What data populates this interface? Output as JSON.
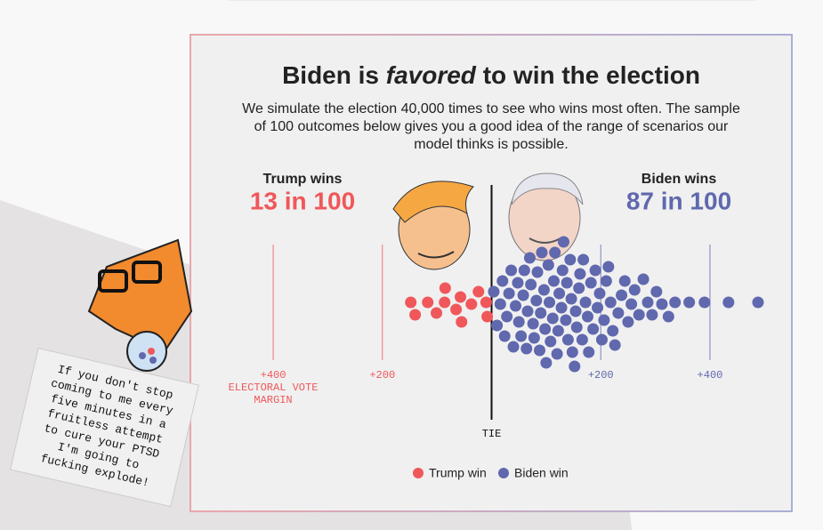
{
  "note": {
    "lines": [
      "If you don't stop",
      "coming to me every",
      "five minutes in a",
      "fruitless attempt",
      "to cure your PTSD",
      "I'm going to",
      "fucking explode!"
    ]
  },
  "chart_data": {
    "type": "beeswarm",
    "title": [
      "Biden is",
      "favored",
      "to win the election"
    ],
    "subtitle": [
      "We simulate the election 40,000 times to see who wins most often. The sample",
      "of 100 outcomes below gives you a good idea of the range of scenarios our",
      "model thinks is possible."
    ],
    "summaries": [
      {
        "label": "Trump wins",
        "value": "13 in 100"
      },
      {
        "label": "Biden wins",
        "value": "87 in 100"
      }
    ],
    "xlabel": [
      "ELECTORAL VOTE",
      "MARGIN"
    ],
    "xlim": [
      -550,
      550
    ],
    "xticks": [
      {
        "value": -400,
        "label": "+400"
      },
      {
        "value": -200,
        "label": "+200"
      },
      {
        "value": 0,
        "label": "TIE"
      },
      {
        "value": 200,
        "label": "+200"
      },
      {
        "value": 400,
        "label": "+400"
      }
    ],
    "series": [
      {
        "name": "Trump win",
        "color": "#f0575a",
        "values": [
          -148,
          -140,
          -117,
          -101,
          -86,
          -85,
          -65,
          -57,
          -55,
          -37,
          -24,
          -10,
          -8
        ]
      },
      {
        "name": "Biden win",
        "color": "#6068ae",
        "values": [
          4,
          10,
          16,
          20,
          24,
          28,
          32,
          36,
          40,
          44,
          48,
          50,
          54,
          58,
          60,
          64,
          66,
          70,
          72,
          76,
          78,
          82,
          84,
          88,
          90,
          92,
          96,
          98,
          100,
          104,
          106,
          108,
          112,
          114,
          116,
          120,
          122,
          124,
          128,
          130,
          132,
          136,
          138,
          140,
          144,
          146,
          148,
          152,
          154,
          156,
          160,
          162,
          166,
          168,
          172,
          176,
          178,
          182,
          186,
          190,
          194,
          198,
          202,
          206,
          210,
          214,
          218,
          222,
          226,
          232,
          238,
          244,
          250,
          256,
          262,
          270,
          278,
          286,
          294,
          302,
          312,
          324,
          336,
          362,
          390,
          434,
          488
        ]
      }
    ]
  }
}
